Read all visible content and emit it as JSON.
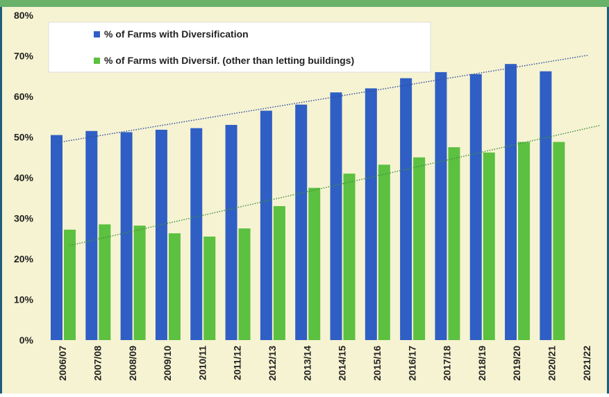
{
  "chart_data": {
    "type": "bar",
    "categories": [
      "2006/07",
      "2007/08",
      "2008/09",
      "2009/10",
      "2010/11",
      "2011/12",
      "2012/13",
      "2013/14",
      "2014/15",
      "2015/16",
      "2016/17",
      "2017/18",
      "2018/19",
      "2019/20",
      "2020/21",
      "2021/22"
    ],
    "series": [
      {
        "name": "% of Farms with Diversification",
        "color": "#2f5fc4",
        "values": [
          50.5,
          51.5,
          51.2,
          51.8,
          52.2,
          53,
          56.5,
          58,
          61,
          62,
          64.5,
          66,
          65.5,
          68,
          66.2,
          null
        ]
      },
      {
        "name": "% of Farms with Diversif. (other than letting buildings)",
        "color": "#5cc040",
        "values": [
          27.2,
          28.5,
          28.2,
          26.3,
          25.5,
          27.5,
          33,
          37.5,
          41,
          43.2,
          45,
          47.5,
          46.2,
          48.8,
          48.8,
          null
        ]
      }
    ],
    "ylim": [
      0,
      80
    ],
    "yticks": [
      {
        "value": 0,
        "label": "0%"
      },
      {
        "value": 10,
        "label": "10%"
      },
      {
        "value": 20,
        "label": "20%"
      },
      {
        "value": 30,
        "label": "30%"
      },
      {
        "value": 40,
        "label": "40%"
      },
      {
        "value": 50,
        "label": "50%"
      },
      {
        "value": 60,
        "label": "60%"
      },
      {
        "value": 70,
        "label": "70%"
      },
      {
        "value": 80,
        "label": "80%"
      }
    ],
    "trendline": true,
    "legend": "top-left"
  }
}
